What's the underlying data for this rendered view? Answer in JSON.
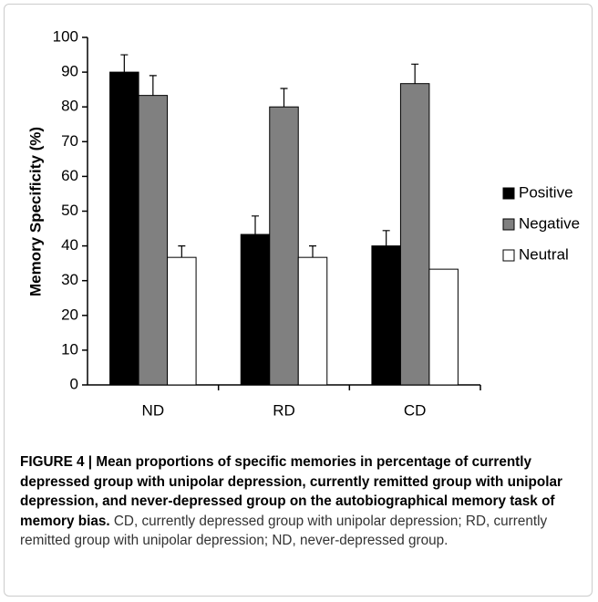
{
  "chart_data": {
    "type": "bar",
    "ylabel": "Memory Specificity (%)",
    "categories": [
      "ND",
      "RD",
      "CD"
    ],
    "series": [
      {
        "name": "Positive",
        "color": "#000000",
        "values": [
          90,
          43.3,
          40
        ],
        "errors": [
          5,
          5.3,
          4.4
        ]
      },
      {
        "name": "Negative",
        "color": "#808080",
        "values": [
          83.3,
          80,
          86.7
        ],
        "errors": [
          5.7,
          5.3,
          5.6
        ]
      },
      {
        "name": "Neutral",
        "color": "#ffffff",
        "values": [
          36.7,
          36.7,
          33.3
        ],
        "errors": [
          3.3,
          3.3,
          null
        ]
      }
    ],
    "ylim": [
      0,
      100
    ],
    "yticks": [
      0,
      10,
      20,
      30,
      40,
      50,
      60,
      70,
      80,
      90,
      100
    ],
    "grid": false,
    "legend": "right"
  },
  "caption": {
    "title": "FIGURE 4 | Mean proportions of specific memories in percentage of currently depressed group with unipolar depression, currently remitted group with unipolar depression, and never-depressed group on the autobiographical memory task of memory bias.",
    "text": "CD, currently depressed group with unipolar depression; RD, currently remitted group with unipolar depression; ND, never-depressed group."
  }
}
